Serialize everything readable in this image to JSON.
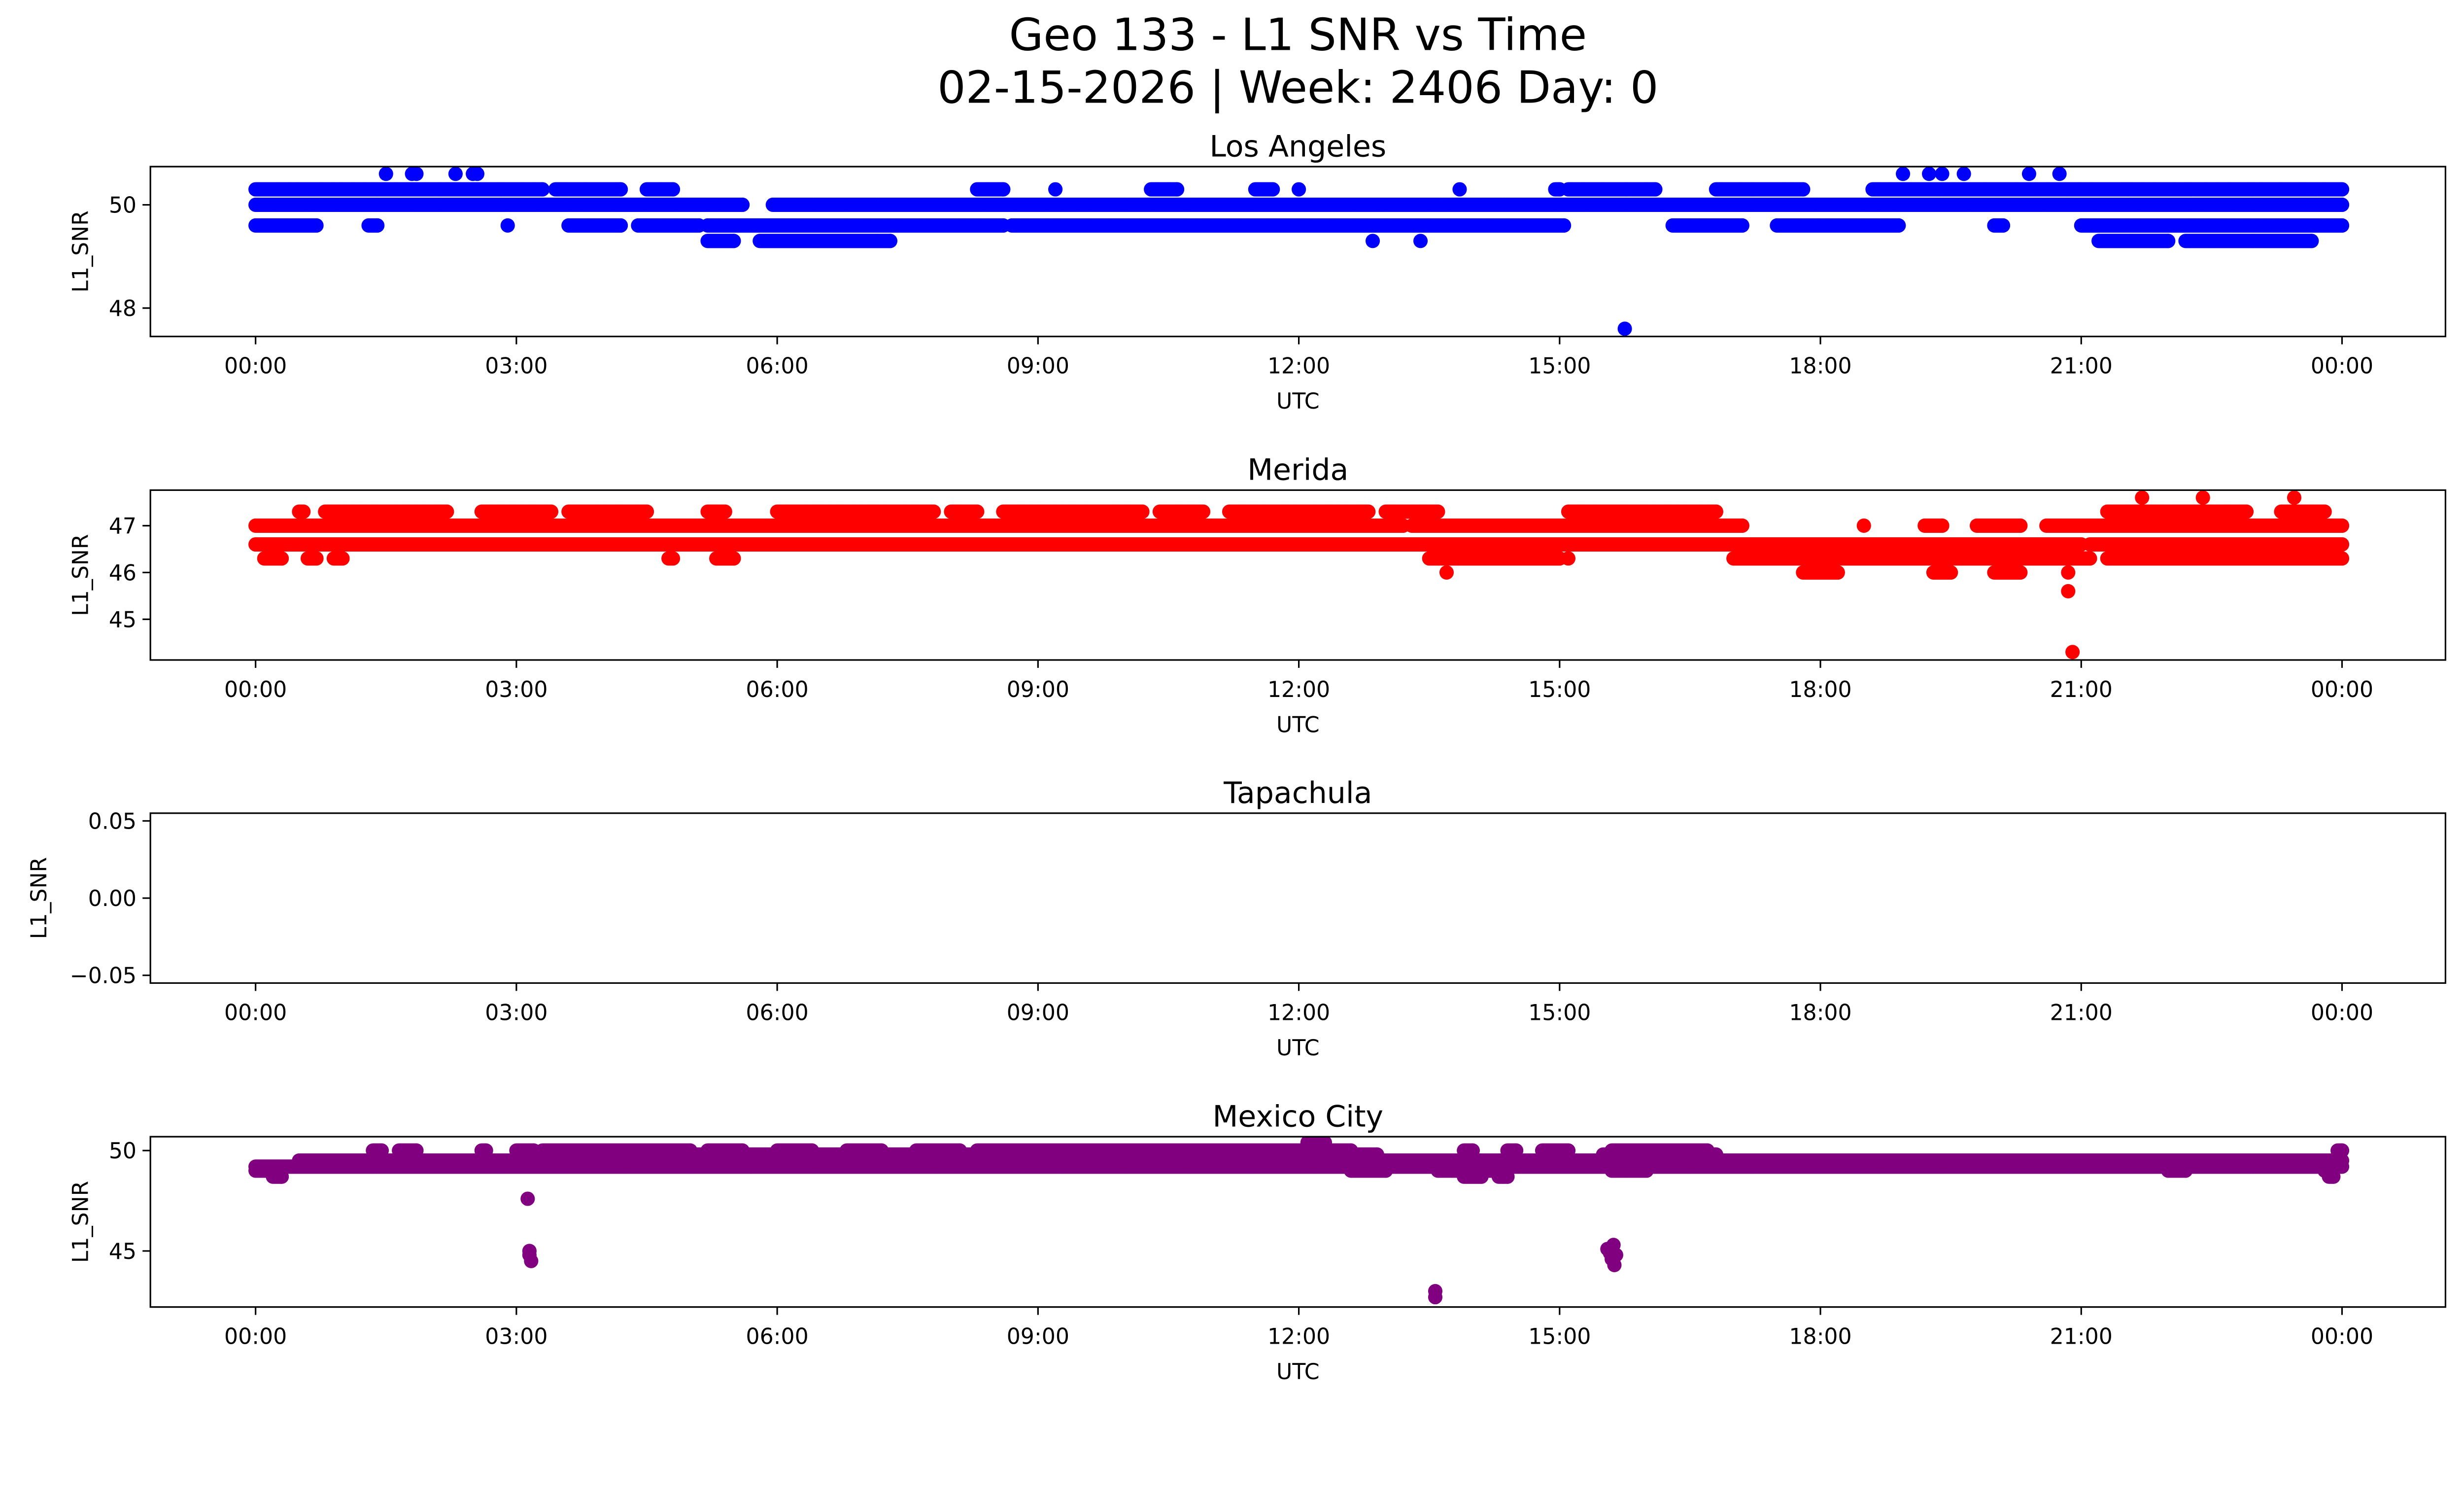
{
  "figure": {
    "title_line1": "Geo 133 - L1 SNR vs Time",
    "title_line2": "02-15-2026 | Week: 2406 Day: 0"
  },
  "chart_data": [
    {
      "type": "scatter",
      "title": "Los Angeles",
      "xlabel": "UTC",
      "ylabel": "L1_SNR",
      "color": "#0000ff",
      "x_unit": "hours UTC",
      "xlim": [
        -1.21,
        25.19
      ],
      "x_ticks": [
        0,
        3,
        6,
        9,
        12,
        15,
        18,
        21,
        24
      ],
      "x_tick_labels": [
        "00:00",
        "03:00",
        "06:00",
        "09:00",
        "12:00",
        "15:00",
        "18:00",
        "21:00",
        "00:00"
      ],
      "ylim": [
        47.45,
        50.74
      ],
      "y_ticks": [
        48,
        50
      ],
      "y_tick_labels": [
        "48",
        "50"
      ],
      "grid": false,
      "segments": [
        {
          "y": 50.3,
          "x": [
            [
              0.0,
              3.3
            ],
            [
              3.45,
              4.2
            ],
            [
              4.5,
              4.8
            ],
            [
              8.3,
              8.6
            ],
            [
              10.3,
              10.6
            ],
            [
              11.5,
              11.7
            ],
            [
              14.95,
              15.0
            ],
            [
              15.1,
              16.1
            ],
            [
              16.8,
              17.8
            ],
            [
              18.6,
              24.0
            ]
          ]
        },
        {
          "y": 50.0,
          "x": [
            [
              0.0,
              5.6
            ],
            [
              5.95,
              24.0
            ]
          ]
        },
        {
          "y": 49.6,
          "x": [
            [
              0.0,
              0.7
            ],
            [
              1.3,
              1.4
            ],
            [
              3.6,
              4.2
            ],
            [
              4.4,
              5.1
            ],
            [
              5.2,
              8.6
            ],
            [
              8.7,
              15.05
            ],
            [
              16.3,
              17.1
            ],
            [
              17.5,
              18.9
            ],
            [
              20.0,
              20.1
            ],
            [
              21.0,
              24.0
            ]
          ]
        },
        {
          "y": 49.3,
          "x": [
            [
              5.2,
              5.5
            ],
            [
              5.8,
              7.3
            ],
            [
              21.2,
              22.0
            ],
            [
              22.2,
              23.65
            ]
          ]
        }
      ],
      "points": [
        [
          1.5,
          50.6
        ],
        [
          1.8,
          50.6
        ],
        [
          1.85,
          50.6
        ],
        [
          2.3,
          50.6
        ],
        [
          2.5,
          50.6
        ],
        [
          2.55,
          50.6
        ],
        [
          2.9,
          49.6
        ],
        [
          9.2,
          50.3
        ],
        [
          12.0,
          50.3
        ],
        [
          12.85,
          49.3
        ],
        [
          13.4,
          49.3
        ],
        [
          13.85,
          50.3
        ],
        [
          15.75,
          47.6
        ],
        [
          18.95,
          50.6
        ],
        [
          19.25,
          50.6
        ],
        [
          19.4,
          50.6
        ],
        [
          19.65,
          50.6
        ],
        [
          20.4,
          50.6
        ],
        [
          20.75,
          50.6
        ]
      ]
    },
    {
      "type": "scatter",
      "title": "Merida",
      "xlabel": "UTC",
      "ylabel": "L1_SNR",
      "color": "#ff0000",
      "x_unit": "hours UTC",
      "xlim": [
        -1.21,
        25.19
      ],
      "x_ticks": [
        0,
        3,
        6,
        9,
        12,
        15,
        18,
        21,
        24
      ],
      "x_tick_labels": [
        "00:00",
        "03:00",
        "06:00",
        "09:00",
        "12:00",
        "15:00",
        "18:00",
        "21:00",
        "00:00"
      ],
      "ylim": [
        44.13,
        47.76
      ],
      "y_ticks": [
        45,
        46,
        47
      ],
      "y_tick_labels": [
        "45",
        "46",
        "47"
      ],
      "grid": false,
      "segments": [
        {
          "y": 47.3,
          "x": [
            [
              0.5,
              0.55
            ],
            [
              0.8,
              2.2
            ],
            [
              2.6,
              3.4
            ],
            [
              3.6,
              4.5
            ],
            [
              5.2,
              5.4
            ],
            [
              6.0,
              7.8
            ],
            [
              8.0,
              8.3
            ],
            [
              8.6,
              10.2
            ],
            [
              10.4,
              10.9
            ],
            [
              11.2,
              12.8
            ],
            [
              13.0,
              13.6
            ],
            [
              15.1,
              16.8
            ],
            [
              21.3,
              22.9
            ],
            [
              23.3,
              23.8
            ]
          ]
        },
        {
          "y": 47.0,
          "x": [
            [
              0.0,
              13.2
            ],
            [
              13.3,
              17.1
            ],
            [
              19.2,
              19.4
            ],
            [
              19.8,
              20.3
            ],
            [
              20.6,
              24.0
            ]
          ]
        },
        {
          "y": 46.6,
          "x": [
            [
              0.0,
              21.0
            ],
            [
              21.1,
              24.0
            ]
          ]
        },
        {
          "y": 46.3,
          "x": [
            [
              0.1,
              0.3
            ],
            [
              0.6,
              0.7
            ],
            [
              0.9,
              1.0
            ],
            [
              4.75,
              4.8
            ],
            [
              5.3,
              5.5
            ],
            [
              13.5,
              15.0
            ],
            [
              17.0,
              21.1
            ],
            [
              21.3,
              24.0
            ]
          ]
        },
        {
          "y": 46.0,
          "x": [
            [
              17.8,
              18.2
            ],
            [
              19.3,
              19.5
            ],
            [
              20.0,
              20.3
            ]
          ]
        }
      ],
      "points": [
        [
          13.7,
          46.0
        ],
        [
          15.1,
          46.3
        ],
        [
          18.5,
          47.0
        ],
        [
          20.85,
          46.0
        ],
        [
          20.85,
          45.6
        ],
        [
          20.9,
          44.3
        ],
        [
          21.7,
          47.6
        ],
        [
          22.4,
          47.6
        ],
        [
          23.45,
          47.6
        ]
      ]
    },
    {
      "type": "scatter",
      "title": "Tapachula",
      "xlabel": "UTC",
      "ylabel": "L1_SNR",
      "color": "#008000",
      "x_unit": "hours UTC",
      "xlim": [
        -1.21,
        25.19
      ],
      "x_ticks": [
        0,
        3,
        6,
        9,
        12,
        15,
        18,
        21,
        24
      ],
      "x_tick_labels": [
        "00:00",
        "03:00",
        "06:00",
        "09:00",
        "12:00",
        "15:00",
        "18:00",
        "21:00",
        "00:00"
      ],
      "ylim": [
        -0.055,
        0.055
      ],
      "y_ticks": [
        -0.05,
        0.0,
        0.05
      ],
      "y_tick_labels": [
        "−0.05",
        "0.00",
        "0.05"
      ],
      "grid": false,
      "segments": [],
      "points": []
    },
    {
      "type": "scatter",
      "title": "Mexico City",
      "xlabel": "UTC",
      "ylabel": "L1_SNR",
      "color": "#800080",
      "x_unit": "hours UTC",
      "xlim": [
        -1.21,
        25.19
      ],
      "x_ticks": [
        0,
        3,
        6,
        9,
        12,
        15,
        18,
        21,
        24
      ],
      "x_tick_labels": [
        "00:00",
        "03:00",
        "06:00",
        "09:00",
        "12:00",
        "15:00",
        "18:00",
        "21:00",
        "00:00"
      ],
      "ylim": [
        42.21,
        50.69
      ],
      "y_ticks": [
        45,
        50
      ],
      "y_tick_labels": [
        "45",
        "50"
      ],
      "grid": false,
      "segments": [
        {
          "y": 50.0,
          "x": [
            [
              1.35,
              1.45
            ],
            [
              1.65,
              1.85
            ],
            [
              2.6,
              2.65
            ],
            [
              3.0,
              3.2
            ],
            [
              3.3,
              5.0
            ],
            [
              5.2,
              5.6
            ],
            [
              6.0,
              6.4
            ],
            [
              6.8,
              7.2
            ],
            [
              7.6,
              8.1
            ],
            [
              8.3,
              12.6
            ],
            [
              13.9,
              14.0
            ],
            [
              14.4,
              14.5
            ],
            [
              14.8,
              15.1
            ],
            [
              15.6,
              16.7
            ],
            [
              23.95,
              24.0
            ]
          ]
        },
        {
          "y": 49.8,
          "x": [
            [
              3.2,
              12.9
            ],
            [
              15.5,
              16.8
            ]
          ]
        },
        {
          "y": 49.5,
          "x": [
            [
              0.5,
              24.0
            ]
          ]
        },
        {
          "y": 49.2,
          "x": [
            [
              0.0,
              24.0
            ]
          ]
        },
        {
          "y": 49.0,
          "x": [
            [
              0.0,
              0.15
            ],
            [
              12.6,
              13.0
            ],
            [
              13.6,
              14.3
            ],
            [
              15.6,
              16.0
            ],
            [
              22.0,
              22.2
            ],
            [
              23.8,
              23.9
            ]
          ]
        },
        {
          "y": 48.7,
          "x": [
            [
              0.2,
              0.3
            ],
            [
              13.9,
              14.1
            ],
            [
              14.3,
              14.4
            ],
            [
              23.85,
              23.9
            ]
          ]
        }
      ],
      "points": [
        [
          3.13,
          47.6
        ],
        [
          3.15,
          45.0
        ],
        [
          3.15,
          44.8
        ],
        [
          3.17,
          44.5
        ],
        [
          12.1,
          50.4
        ],
        [
          12.2,
          50.4
        ],
        [
          12.3,
          50.4
        ],
        [
          13.57,
          43.0
        ],
        [
          13.57,
          42.7
        ],
        [
          15.55,
          45.1
        ],
        [
          15.58,
          44.9
        ],
        [
          15.6,
          44.6
        ],
        [
          15.62,
          45.3
        ],
        [
          15.63,
          44.3
        ],
        [
          15.65,
          44.8
        ]
      ]
    }
  ]
}
